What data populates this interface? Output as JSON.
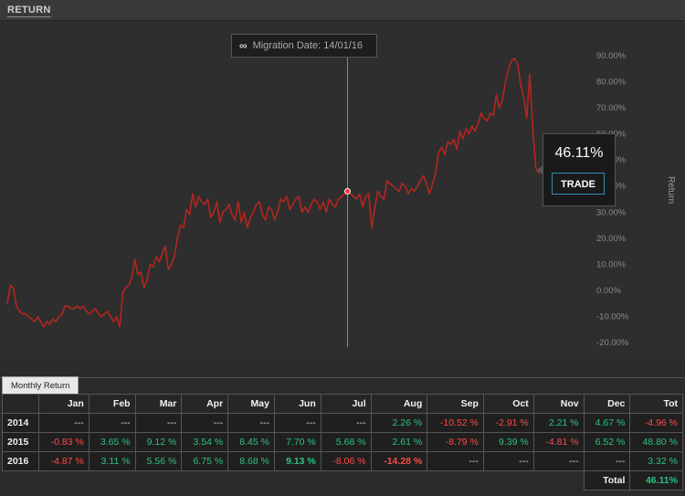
{
  "header": {
    "title": "RETURN"
  },
  "migration": {
    "label": "Migration Date: 14/01/16"
  },
  "tooltip": {
    "value": "46.11%",
    "trade_label": "TRADE"
  },
  "icons": {
    "migration": "infinity-icon"
  },
  "colors": {
    "line": "#b3261e",
    "positive": "#2ec27e",
    "negative": "#ff4a4a",
    "button_border": "#2e8fb5"
  },
  "table": {
    "tab_label": "Monthly Return",
    "headers": [
      "",
      "Jan",
      "Feb",
      "Mar",
      "Apr",
      "May",
      "Jun",
      "Jul",
      "Aug",
      "Sep",
      "Oct",
      "Nov",
      "Dec",
      "Tot"
    ],
    "rows": [
      {
        "year": "2014",
        "cells": [
          "---",
          "---",
          "---",
          "---",
          "---",
          "---",
          "---",
          "2.26 %",
          "-10.52 %",
          "-2.91 %",
          "2.21 %",
          "4.67 %",
          "-4.96 %"
        ]
      },
      {
        "year": "2015",
        "cells": [
          "-0.83 %",
          "3.65 %",
          "9.12 %",
          "3.54 %",
          "8.45 %",
          "7.70 %",
          "5.68 %",
          "2.61 %",
          "-8.79 %",
          "9.39 %",
          "-4.81 %",
          "6.52 %",
          "48.80 %"
        ]
      },
      {
        "year": "2016",
        "cells": [
          "-4.87 %",
          "3.11 %",
          "5.56 %",
          "6.75 %",
          "8.68 %",
          "9.13 %",
          "-8.06 %",
          "-14.28 %",
          "---",
          "---",
          "---",
          "---",
          "3.32 %"
        ]
      }
    ],
    "bold_cells": [
      "2016-5",
      "2016-7"
    ],
    "total_label": "Total",
    "total_value": "46.11%"
  },
  "chart_data": {
    "type": "line",
    "title": "",
    "xlabel": "",
    "ylabel": "Return",
    "ylim": [
      -20,
      90
    ],
    "yticks": [
      90,
      80,
      70,
      60,
      50,
      40,
      30,
      20,
      10,
      0,
      -10,
      -20
    ],
    "ytick_labels": [
      "90.00%",
      "80.00%",
      "70.00%",
      "60.00%",
      "50.00%",
      "40.00%",
      "30.00%",
      "20.00%",
      "10.00%",
      "0.00%",
      "-10.00%",
      "-20.00%"
    ],
    "grid": false,
    "marker_index": 112,
    "series": [
      {
        "values": [
          -5,
          2,
          1,
          -6,
          -8,
          -9,
          -9,
          -10,
          -11,
          -12,
          -10,
          -12,
          -14,
          -12,
          -13,
          -11,
          -12,
          -10,
          -9,
          -6,
          -6,
          -7,
          -7,
          -6,
          -7,
          -6,
          -8,
          -9,
          -8,
          -7,
          -9,
          -10,
          -9,
          -8,
          -10,
          -12,
          -10,
          -14,
          -1,
          1,
          2,
          5,
          12,
          6,
          7,
          1,
          4,
          10,
          9,
          13,
          11,
          14,
          17,
          8,
          10,
          13,
          20,
          25,
          24,
          31,
          29,
          37,
          32,
          36,
          34,
          33,
          35,
          28,
          30,
          34,
          26,
          30,
          31,
          33,
          29,
          27,
          34,
          26,
          30,
          24,
          28,
          30,
          33,
          34,
          29,
          27,
          32,
          31,
          27,
          30,
          35,
          34,
          36,
          31,
          33,
          35,
          36,
          30,
          32,
          30,
          33,
          35,
          34,
          31,
          34,
          30,
          35,
          33,
          32,
          35,
          36,
          37,
          38,
          37,
          36,
          35,
          37,
          32,
          36,
          37,
          24,
          32,
          38,
          36,
          35,
          42,
          41,
          40,
          39,
          38,
          41,
          40,
          37,
          39,
          38,
          40,
          42,
          44,
          41,
          37,
          41,
          45,
          53,
          55,
          52,
          57,
          56,
          58,
          54,
          61,
          58,
          62,
          60,
          63,
          61,
          64,
          68,
          66,
          65,
          68,
          67,
          75,
          70,
          73,
          80,
          85,
          88,
          89,
          87,
          79,
          74,
          66,
          83,
          62,
          47,
          45
        ]
      }
    ]
  }
}
